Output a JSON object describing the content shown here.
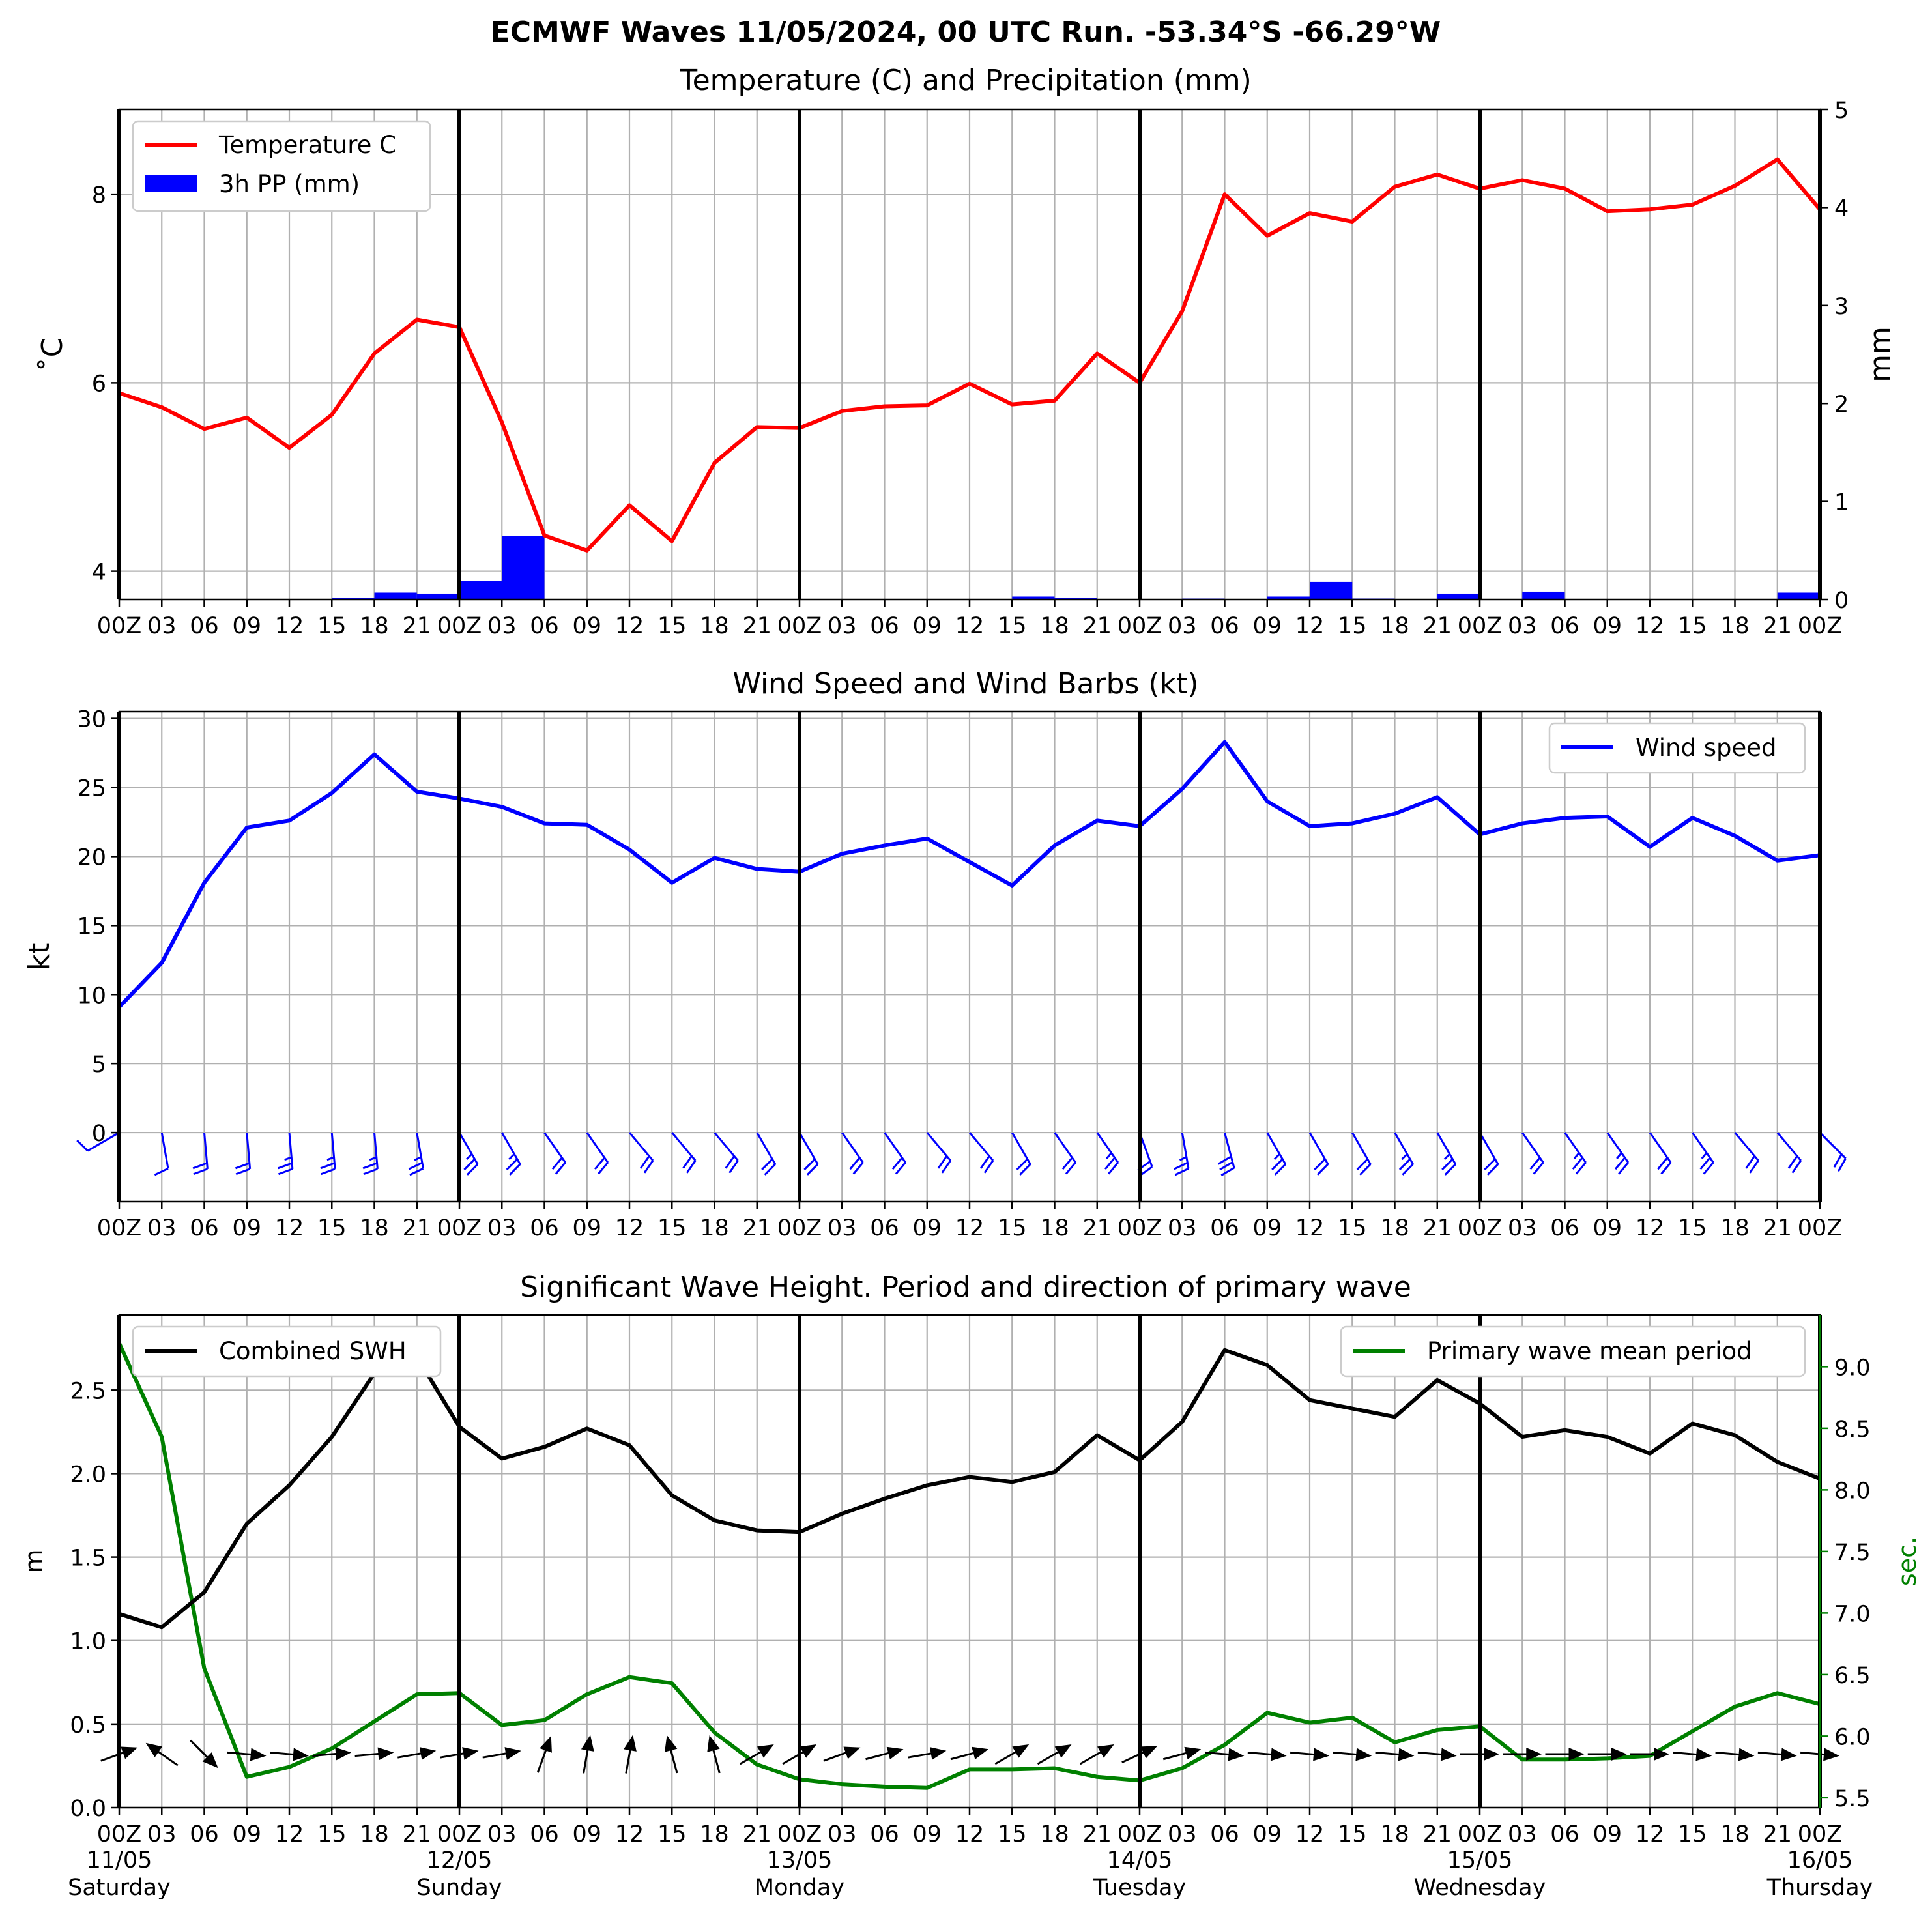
{
  "suptitle": "ECMWF Waves 11/05/2024, 00 UTC Run. -53.34°S -66.29°W",
  "x_tick_labels": [
    "00Z",
    "03",
    "06",
    "09",
    "12",
    "15",
    "18",
    "21",
    "00Z",
    "03",
    "06",
    "09",
    "12",
    "15",
    "18",
    "21",
    "00Z",
    "03",
    "06",
    "09",
    "12",
    "15",
    "18",
    "21",
    "00Z",
    "03",
    "06",
    "09",
    "12",
    "15",
    "18",
    "21",
    "00Z",
    "03",
    "06",
    "09",
    "12",
    "15",
    "18",
    "21",
    "00Z"
  ],
  "day_labels": [
    {
      "date": "11/05",
      "day": "Saturday"
    },
    {
      "date": "12/05",
      "day": "Sunday"
    },
    {
      "date": "13/05",
      "day": "Monday"
    },
    {
      "date": "14/05",
      "day": "Tuesday"
    },
    {
      "date": "15/05",
      "day": "Wednesday"
    },
    {
      "date": "16/05",
      "day": "Thursday"
    }
  ],
  "chart_data": [
    {
      "type": "line",
      "title": "Temperature (C) and Precipitation (mm)",
      "ylabel": "$^\\circ$C",
      "ylabel_display": "˚C",
      "y2label": "mm",
      "ylim": [
        3.7,
        8.9
      ],
      "yticks": [
        4,
        6,
        8
      ],
      "y2lim": [
        0,
        5
      ],
      "y2ticks": [
        0,
        1,
        2,
        3,
        4,
        5
      ],
      "legend_position": "top-left",
      "grid": true,
      "x_hours": [
        0,
        3,
        6,
        9,
        12,
        15,
        18,
        21,
        24,
        27,
        30,
        33,
        36,
        39,
        42,
        45,
        48,
        51,
        54,
        57,
        60,
        63,
        66,
        69,
        72,
        75,
        78,
        81,
        84,
        87,
        90,
        93,
        96,
        99,
        102,
        105,
        108,
        111,
        114,
        117,
        120
      ],
      "series": [
        {
          "name": "Temperature C",
          "color": "#ff0000",
          "axis": "left",
          "values": [
            5.89,
            5.74,
            5.51,
            5.63,
            5.31,
            5.66,
            6.31,
            6.67,
            6.59,
            5.58,
            4.38,
            4.22,
            4.7,
            4.32,
            5.15,
            5.53,
            5.52,
            5.7,
            5.75,
            5.76,
            5.99,
            5.77,
            5.81,
            6.31,
            6.0,
            6.76,
            8.0,
            7.56,
            7.8,
            7.71,
            8.08,
            8.21,
            8.06,
            8.15,
            8.06,
            7.82,
            7.84,
            7.89,
            8.09,
            8.37,
            7.84
          ]
        },
        {
          "name": "3h PP (mm)",
          "color": "#0000ff",
          "axis": "right",
          "kind": "bar",
          "values": [
            0,
            0,
            0,
            0,
            0,
            0.02,
            0.07,
            0.06,
            0.19,
            0.65,
            0,
            0,
            0,
            0,
            0,
            0,
            0,
            0,
            0,
            0,
            0,
            0.03,
            0.02,
            0,
            0,
            0.01,
            0,
            0.03,
            0.18,
            0.01,
            0,
            0.06,
            0,
            0.08,
            0,
            0,
            0,
            0,
            0,
            0.07,
            0
          ]
        }
      ]
    },
    {
      "type": "line",
      "title": "Wind Speed and Wind Barbs (kt)",
      "ylabel": "kt",
      "ylim": [
        -5,
        30.5
      ],
      "yticks": [
        0,
        5,
        10,
        15,
        20,
        25,
        30
      ],
      "legend_position": "top-right",
      "grid": true,
      "series": [
        {
          "name": "Wind speed",
          "color": "#0000ff",
          "values": [
            9.1,
            12.3,
            18.1,
            22.1,
            22.6,
            24.6,
            27.4,
            24.7,
            24.2,
            23.6,
            22.4,
            22.3,
            20.5,
            18.1,
            19.9,
            19.1,
            18.9,
            20.2,
            20.8,
            21.3,
            19.6,
            17.9,
            20.8,
            22.6,
            22.2,
            24.9,
            28.3,
            24.0,
            22.2,
            22.4,
            23.1,
            24.3,
            21.6,
            22.4,
            22.8,
            22.9,
            20.7,
            22.8,
            21.5,
            19.7,
            20.1
          ]
        }
      ],
      "barb_color": "#0000ff",
      "barb_directions_deg": [
        240,
        170,
        175,
        175,
        175,
        175,
        175,
        170,
        150,
        150,
        145,
        145,
        140,
        140,
        140,
        150,
        150,
        145,
        145,
        140,
        140,
        150,
        145,
        145,
        160,
        170,
        165,
        150,
        150,
        150,
        150,
        150,
        150,
        145,
        145,
        145,
        145,
        145,
        140,
        140,
        135
      ]
    },
    {
      "type": "line",
      "title": "Significant Wave Height. Period and direction of primary wave",
      "ylabel": "m",
      "y2label": "sec.",
      "ylim": [
        0,
        2.95
      ],
      "yticks": [
        0.0,
        0.5,
        1.0,
        1.5,
        2.0,
        2.5
      ],
      "y2lim": [
        5.42,
        9.42
      ],
      "y2ticks": [
        5.5,
        6.0,
        6.5,
        7.0,
        7.5,
        8.0,
        8.5,
        9.0
      ],
      "legend_position": "top-left and top-right",
      "grid": true,
      "series": [
        {
          "name": "Combined SWH",
          "color": "#000000",
          "axis": "left",
          "values": [
            1.16,
            1.08,
            1.29,
            1.7,
            1.93,
            2.22,
            2.6,
            2.7,
            2.28,
            2.09,
            2.16,
            2.27,
            2.17,
            1.87,
            1.72,
            1.66,
            1.65,
            1.76,
            1.85,
            1.93,
            1.98,
            1.95,
            2.01,
            2.23,
            2.08,
            2.31,
            2.74,
            2.65,
            2.44,
            2.39,
            2.34,
            2.56,
            2.42,
            2.22,
            2.26,
            2.22,
            2.12,
            2.3,
            2.23,
            2.07,
            1.97
          ]
        },
        {
          "name": "Primary wave mean period",
          "color": "#008000",
          "axis": "right",
          "values": [
            9.19,
            8.43,
            6.55,
            5.67,
            5.75,
            5.9,
            6.12,
            6.34,
            6.35,
            6.09,
            6.13,
            6.34,
            6.48,
            6.43,
            6.03,
            5.77,
            5.65,
            5.61,
            5.59,
            5.58,
            5.73,
            5.73,
            5.74,
            5.67,
            5.64,
            5.74,
            5.93,
            6.19,
            6.11,
            6.15,
            5.95,
            6.05,
            6.08,
            5.81,
            5.81,
            5.82,
            5.84,
            6.04,
            6.24,
            6.35,
            6.26
          ]
        }
      ],
      "wave_arrow_color": "#000000",
      "wave_arrow_to_deg": [
        70,
        305,
        135,
        95,
        95,
        85,
        85,
        80,
        80,
        80,
        20,
        10,
        10,
        345,
        345,
        60,
        60,
        70,
        75,
        80,
        75,
        60,
        60,
        60,
        65,
        75,
        95,
        95,
        95,
        95,
        95,
        95,
        90,
        90,
        90,
        90,
        90,
        95,
        95,
        95,
        95
      ]
    }
  ]
}
